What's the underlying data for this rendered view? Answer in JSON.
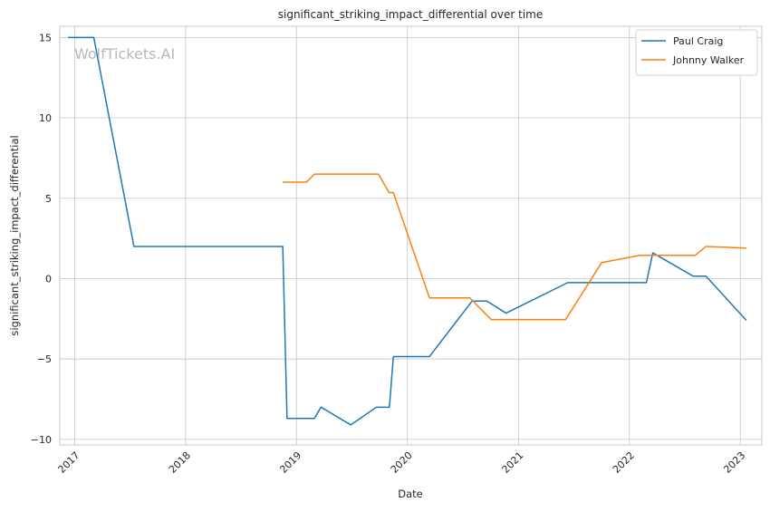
{
  "chart_data": {
    "type": "line",
    "title": "significant_striking_impact_differential over time",
    "xlabel": "Date",
    "ylabel": "significant_striking_impact_differential",
    "x_tick_labels": [
      "2017",
      "2018",
      "2019",
      "2020",
      "2021",
      "2022",
      "2023"
    ],
    "y_ticks": [
      -10,
      -5,
      0,
      5,
      10,
      15
    ],
    "y_tick_labels": [
      "−10",
      "−5",
      "0",
      "5",
      "10",
      "15"
    ],
    "xlim": [
      "2016-11-13",
      "2023-03-13"
    ],
    "ylim": [
      -10.35,
      15.7
    ],
    "grid": true,
    "legend_position": "top-right",
    "watermark": "WolfTickets.AI",
    "series": [
      {
        "name": "Paul Craig",
        "color": "#1f77b4",
        "points": [
          [
            "2016-12-10",
            15.0
          ],
          [
            "2017-03-05",
            15.0
          ],
          [
            "2017-07-15",
            2.0
          ],
          [
            "2018-11-17",
            2.0
          ],
          [
            "2018-12-01",
            -8.7
          ],
          [
            "2019-03-01",
            -8.7
          ],
          [
            "2019-03-23",
            -8.0
          ],
          [
            "2019-06-29",
            -9.1
          ],
          [
            "2019-09-21",
            -8.0
          ],
          [
            "2019-11-03",
            -8.0
          ],
          [
            "2019-11-16",
            -4.85
          ],
          [
            "2020-03-14",
            -4.85
          ],
          [
            "2020-08-01",
            -1.4
          ],
          [
            "2020-09-19",
            -1.4
          ],
          [
            "2020-11-21",
            -2.15
          ],
          [
            "2021-06-12",
            -0.25
          ],
          [
            "2022-02-26",
            -0.25
          ],
          [
            "2022-03-19",
            1.6
          ],
          [
            "2022-07-30",
            0.15
          ],
          [
            "2022-09-10",
            0.15
          ],
          [
            "2023-01-21",
            -2.6
          ]
        ]
      },
      {
        "name": "Johnny Walker",
        "color": "#ff7f0e",
        "points": [
          [
            "2018-11-17",
            6.0
          ],
          [
            "2019-02-02",
            6.0
          ],
          [
            "2019-03-02",
            6.5
          ],
          [
            "2019-09-28",
            6.5
          ],
          [
            "2019-11-02",
            5.35
          ],
          [
            "2019-11-16",
            5.35
          ],
          [
            "2020-03-14",
            -1.2
          ],
          [
            "2020-07-25",
            -1.2
          ],
          [
            "2020-10-03",
            -2.55
          ],
          [
            "2021-06-05",
            -2.55
          ],
          [
            "2021-10-02",
            1.0
          ],
          [
            "2022-02-05",
            1.45
          ],
          [
            "2022-08-06",
            1.45
          ],
          [
            "2022-09-10",
            2.0
          ],
          [
            "2023-01-21",
            1.9
          ]
        ]
      }
    ]
  }
}
